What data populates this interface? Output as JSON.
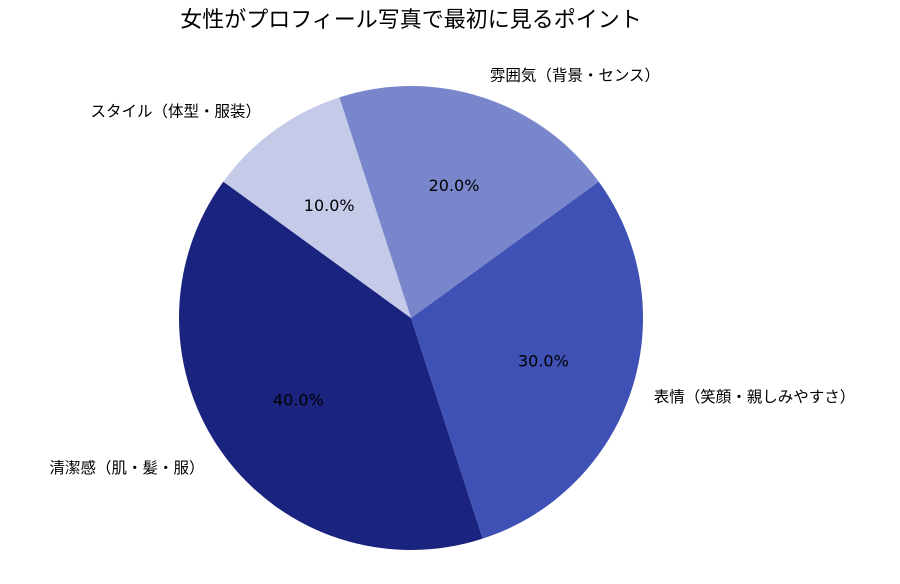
{
  "chart_data": {
    "type": "pie",
    "title": "女性がプロフィール写真で最初に見るポイント",
    "slices": [
      {
        "label": "清潔感（肌・髪・服）",
        "value": 40.0,
        "display": "40.0%",
        "color": "#1a237e"
      },
      {
        "label": "表情（笑顔・親しみやすさ）",
        "value": 30.0,
        "display": "30.0%",
        "color": "#3f51b5"
      },
      {
        "label": "雰囲気（背景・センス）",
        "value": 20.0,
        "display": "20.0%",
        "color": "#7986cb"
      },
      {
        "label": "スタイル（体型・服装）",
        "value": 10.0,
        "display": "10.0%",
        "color": "#c5cae9"
      }
    ],
    "start_angle_deg": 144,
    "direction": "counterclockwise",
    "legend": "none"
  }
}
